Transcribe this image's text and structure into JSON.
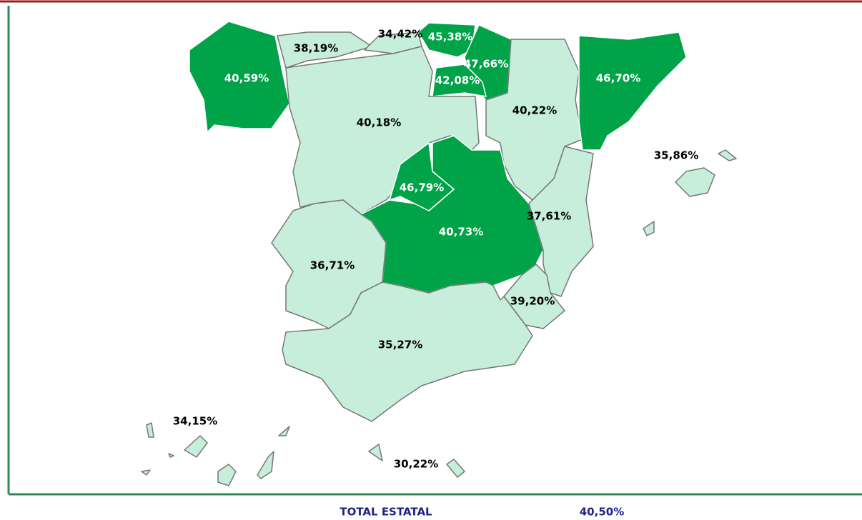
{
  "regions": [
    {
      "label": "40,59%",
      "color": "#00a348",
      "text_color": "#ffffff"
    },
    {
      "label": "38,19%",
      "color": "#c6eedb",
      "text_color": "#000000"
    },
    {
      "label": "34,42%",
      "color": "#c6eedb",
      "text_color": "#000000"
    },
    {
      "label": "45,38%",
      "color": "#00a348",
      "text_color": "#ffffff"
    },
    {
      "label": "47,66%",
      "color": "#00a348",
      "text_color": "#ffffff"
    },
    {
      "label": "42,08%",
      "color": "#00a348",
      "text_color": "#ffffff"
    },
    {
      "label": "40,18%",
      "color": "#c6eedb",
      "text_color": "#000000"
    },
    {
      "label": "40,22%",
      "color": "#c6eedb",
      "text_color": "#000000"
    },
    {
      "label": "46,70%",
      "color": "#00a348",
      "text_color": "#ffffff"
    },
    {
      "label": "46,79%",
      "color": "#00a348",
      "text_color": "#ffffff"
    },
    {
      "label": "40,73%",
      "color": "#00a348",
      "text_color": "#ffffff"
    },
    {
      "label": "37,61%",
      "color": "#c6eedb",
      "text_color": "#000000"
    },
    {
      "label": "39,20%",
      "color": "#c6eedb",
      "text_color": "#000000"
    },
    {
      "label": "36,71%",
      "color": "#c6eedb",
      "text_color": "#000000"
    },
    {
      "label": "35,27%",
      "color": "#c6eedb",
      "text_color": "#000000"
    },
    {
      "label": "35,86%",
      "color": "#c6eedb",
      "text_color": "#000000"
    },
    {
      "label": "34,15%",
      "color": "#c6eedb",
      "text_color": "#000000"
    },
    {
      "label": "30,22%",
      "color": "#c6eedb",
      "text_color": "#000000"
    }
  ],
  "total": {
    "label": "TOTAL ESTATAL",
    "value": "40,50%"
  }
}
